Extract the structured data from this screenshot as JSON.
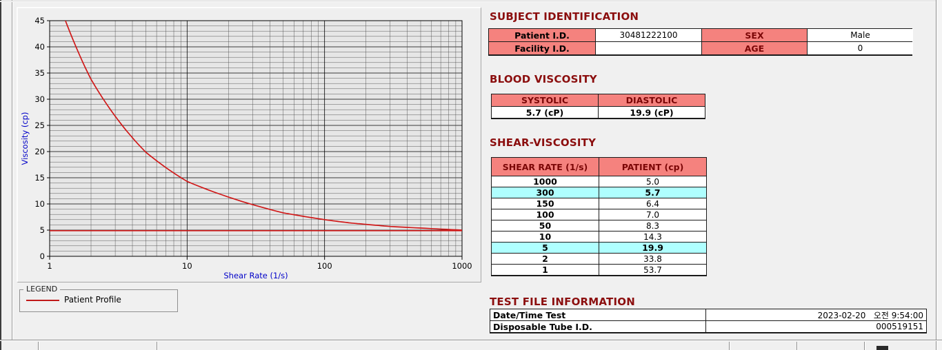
{
  "colors": {
    "curve_red": "#d01818",
    "header_pink": "#f5827e",
    "highlight_cyan": "#afffff",
    "title_maroon": "#8b0e0e",
    "axis_label_blue": "#0000c8"
  },
  "chart_data": {
    "type": "line",
    "title": "",
    "xlabel": "Shear Rate (1/s)",
    "ylabel": "Viscosity (cp)",
    "x_scale": "log",
    "xlim": [
      1,
      1000
    ],
    "ylim": [
      0,
      45
    ],
    "x_ticks": [
      1,
      10,
      100,
      1000
    ],
    "y_tick_step_major": 5,
    "y_tick_step_minor": 1,
    "grid": true,
    "legend_position": "below-left",
    "series": [
      {
        "name": "Patient Profile",
        "color": "#d01818",
        "interpolation": "power",
        "points": [
          [
            1,
            53.7
          ],
          [
            2,
            33.8
          ],
          [
            5,
            19.9
          ],
          [
            10,
            14.3
          ],
          [
            50,
            8.3
          ],
          [
            100,
            7.0
          ],
          [
            150,
            6.4
          ],
          [
            300,
            5.7
          ],
          [
            1000,
            5.0
          ]
        ]
      },
      {
        "name": "high-shear asymptote line",
        "color": "#d01818",
        "interpolation": "power",
        "points": [
          [
            1,
            4.9
          ],
          [
            1000,
            4.9
          ]
        ]
      }
    ]
  },
  "legend": {
    "box_label": "LEGEND",
    "series_label": "Patient Profile"
  },
  "sections": {
    "subject": {
      "title": "SUBJECT IDENTIFICATION",
      "rows": [
        {
          "label": "Patient I.D.",
          "value": "30481222100",
          "label2": "SEX",
          "value2": "Male"
        },
        {
          "label": "Facility I.D.",
          "value": "",
          "label2": "AGE",
          "value2": "0"
        }
      ]
    },
    "blood": {
      "title": "BLOOD VISCOSITY",
      "headers": [
        "SYSTOLIC",
        "DIASTOLIC"
      ],
      "values": [
        "5.7 (cP)",
        "19.9 (cP)"
      ]
    },
    "shear": {
      "title": "SHEAR-VISCOSITY",
      "headers": [
        "SHEAR RATE (1/s)",
        "PATIENT (cp)"
      ],
      "rows": [
        {
          "rate": "1000",
          "value": "5.0",
          "highlight": false
        },
        {
          "rate": "300",
          "value": "5.7",
          "highlight": true
        },
        {
          "rate": "150",
          "value": "6.4",
          "highlight": false
        },
        {
          "rate": "100",
          "value": "7.0",
          "highlight": false
        },
        {
          "rate": "50",
          "value": "8.3",
          "highlight": false
        },
        {
          "rate": "10",
          "value": "14.3",
          "highlight": false
        },
        {
          "rate": "5",
          "value": "19.9",
          "highlight": true
        },
        {
          "rate": "2",
          "value": "33.8",
          "highlight": false
        },
        {
          "rate": "1",
          "value": "53.7",
          "highlight": false
        }
      ]
    },
    "test": {
      "title": "TEST FILE INFORMATION",
      "rows": [
        {
          "label": "Date/Time Test",
          "value": "2023-02-20   오전 9:54:00"
        },
        {
          "label": "Disposable Tube I.D.",
          "value": "000519151"
        }
      ]
    }
  }
}
